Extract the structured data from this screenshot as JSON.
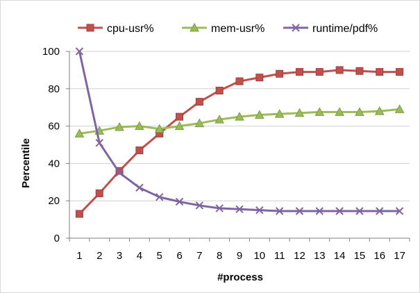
{
  "chart_data": {
    "type": "line",
    "title": "",
    "xlabel": "#process",
    "ylabel": "Percentile",
    "x": [
      1,
      2,
      3,
      4,
      5,
      6,
      7,
      8,
      9,
      10,
      11,
      12,
      13,
      14,
      15,
      16,
      17
    ],
    "ylim": [
      0,
      100
    ],
    "yticks": [
      0,
      20,
      40,
      60,
      80,
      100
    ],
    "grid": "horizontal",
    "legend": "top",
    "series": [
      {
        "name": "cpu-usr%",
        "color": "#c0504d",
        "marker": "square",
        "values": [
          13,
          24,
          36,
          47,
          56,
          65,
          73,
          79,
          84,
          86,
          88,
          89,
          89,
          90,
          89.5,
          89,
          89
        ]
      },
      {
        "name": "mem-usr%",
        "color": "#9bbb59",
        "marker": "triangle",
        "values": [
          56,
          57.5,
          59.5,
          60,
          58.5,
          60,
          61.5,
          63.5,
          65,
          66,
          66.5,
          67,
          67.5,
          67.5,
          67.5,
          68,
          69
        ]
      },
      {
        "name": "runtime/pdf%",
        "color": "#8064a2",
        "marker": "x",
        "values": [
          100,
          51,
          35,
          27,
          22,
          19.5,
          17.5,
          16,
          15.5,
          15,
          14.5,
          14.5,
          14.5,
          14.5,
          14.5,
          14.5,
          14.5
        ]
      }
    ]
  }
}
